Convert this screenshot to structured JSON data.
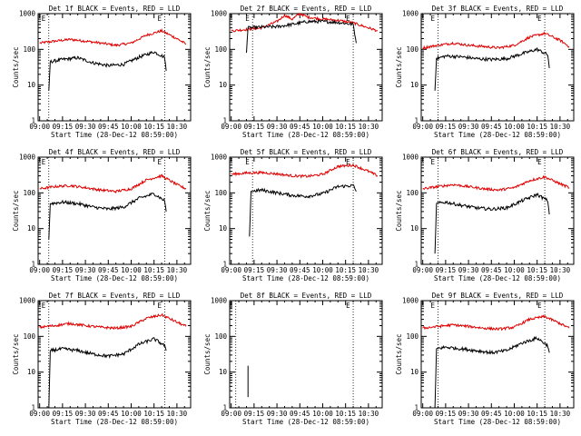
{
  "figure": {
    "colors": {
      "events": "#000000",
      "lld": "#e00000",
      "background": "#ffffff"
    }
  },
  "chart_data": [
    {
      "type": "line",
      "detector": "1f",
      "title": "Det 1f BLACK = Events, RED = LLD",
      "xlabel": "Start Time (28-Dec-12 08:59:00)",
      "ylabel": "Counts/sec",
      "x_ticks": [
        "09:00",
        "09:15",
        "09:30",
        "09:45",
        "10:00",
        "10:15",
        "10:30"
      ],
      "y_ticks": [
        "1",
        "10",
        "100",
        "1000"
      ],
      "ylim": [
        1,
        1000
      ],
      "yscale": "log",
      "markers": [
        {
          "label": "E",
          "time": "09:06"
        },
        {
          "label": "E",
          "time": "10:22"
        }
      ],
      "series": [
        {
          "key": "lld",
          "x": [
            "09:00",
            "09:10",
            "09:20",
            "09:30",
            "09:40",
            "09:50",
            "10:00",
            "10:10",
            "10:20",
            "10:30",
            "10:36"
          ],
          "values": [
            150,
            170,
            190,
            170,
            150,
            130,
            150,
            250,
            330,
            200,
            140
          ]
        },
        {
          "key": "events",
          "x": [
            "09:06",
            "09:07",
            "09:15",
            "09:25",
            "09:35",
            "09:45",
            "09:55",
            "10:05",
            "10:15",
            "10:22",
            "10:23"
          ],
          "values": [
            7,
            45,
            52,
            58,
            42,
            35,
            38,
            60,
            85,
            60,
            25
          ]
        }
      ]
    },
    {
      "type": "line",
      "detector": "2f",
      "title": "Det 2f BLACK = Events, RED = LLD",
      "xlabel": "Start Time (28-Dec-12 08:59:00)",
      "ylabel": "Counts/sec",
      "x_ticks": [
        "09:00",
        "09:15",
        "09:30",
        "09:45",
        "10:00",
        "10:15",
        "10:30"
      ],
      "y_ticks": [
        "1",
        "10",
        "100",
        "1000"
      ],
      "ylim": [
        1,
        1000
      ],
      "yscale": "log",
      "markers": [
        {
          "label": "E",
          "time": "09:14"
        },
        {
          "label": "E",
          "time": "10:20"
        }
      ],
      "series": [
        {
          "key": "lld",
          "x": [
            "09:00",
            "09:10",
            "09:20",
            "09:30",
            "09:35",
            "09:40",
            "09:45",
            "09:50",
            "09:55",
            "10:00",
            "10:10",
            "10:20",
            "10:30",
            "10:36"
          ],
          "values": [
            330,
            360,
            400,
            600,
            900,
            700,
            1000,
            800,
            750,
            700,
            650,
            550,
            400,
            330
          ]
        },
        {
          "key": "events",
          "x": [
            "09:10",
            "09:11",
            "09:20",
            "09:30",
            "09:40",
            "09:50",
            "10:00",
            "10:10",
            "10:20",
            "10:22"
          ],
          "values": [
            80,
            400,
            420,
            430,
            500,
            600,
            600,
            570,
            500,
            150
          ]
        }
      ]
    },
    {
      "type": "line",
      "detector": "3f",
      "title": "Det 3f BLACK = Events, RED = LLD",
      "xlabel": "Start Time (28-Dec-12 08:59:00)",
      "ylabel": "Counts/sec",
      "x_ticks": [
        "09:00",
        "09:15",
        "09:30",
        "09:45",
        "10:00",
        "10:15",
        "10:30"
      ],
      "y_ticks": [
        "1",
        "10",
        "100",
        "1000"
      ],
      "ylim": [
        1,
        1000
      ],
      "yscale": "log",
      "markers": [
        {
          "label": "E",
          "time": "09:10"
        },
        {
          "label": "E",
          "time": "10:20"
        }
      ],
      "series": [
        {
          "key": "lld",
          "x": [
            "09:00",
            "09:10",
            "09:20",
            "09:30",
            "09:40",
            "09:50",
            "10:00",
            "10:10",
            "10:20",
            "10:30",
            "10:36"
          ],
          "values": [
            110,
            130,
            150,
            130,
            120,
            110,
            130,
            220,
            280,
            180,
            120
          ]
        },
        {
          "key": "events",
          "x": [
            "09:08",
            "09:09",
            "09:15",
            "09:25",
            "09:35",
            "09:45",
            "09:55",
            "10:05",
            "10:15",
            "10:22",
            "10:23"
          ],
          "values": [
            7,
            55,
            65,
            62,
            55,
            52,
            55,
            75,
            100,
            70,
            30
          ]
        }
      ]
    },
    {
      "type": "line",
      "detector": "4f",
      "title": "Det 4f BLACK = Events, RED = LLD",
      "xlabel": "Start Time (28-Dec-12 08:59:00)",
      "ylabel": "Counts/sec",
      "x_ticks": [
        "09:00",
        "09:15",
        "09:30",
        "09:45",
        "10:00",
        "10:15",
        "10:30"
      ],
      "y_ticks": [
        "1",
        "10",
        "100",
        "1000"
      ],
      "ylim": [
        1,
        1000
      ],
      "yscale": "log",
      "markers": [
        {
          "label": "E",
          "time": "09:06"
        },
        {
          "label": "E",
          "time": "10:22"
        }
      ],
      "series": [
        {
          "key": "lld",
          "x": [
            "09:00",
            "09:10",
            "09:20",
            "09:30",
            "09:40",
            "09:50",
            "10:00",
            "10:10",
            "10:20",
            "10:30",
            "10:36"
          ],
          "values": [
            130,
            150,
            160,
            140,
            120,
            110,
            130,
            230,
            300,
            170,
            130
          ]
        },
        {
          "key": "events",
          "x": [
            "09:06",
            "09:07",
            "09:15",
            "09:25",
            "09:35",
            "09:45",
            "09:55",
            "10:05",
            "10:15",
            "10:22",
            "10:23"
          ],
          "values": [
            5,
            50,
            55,
            50,
            40,
            35,
            40,
            70,
            95,
            60,
            30
          ]
        }
      ]
    },
    {
      "type": "line",
      "detector": "5f",
      "title": "Det 5f BLACK = Events, RED = LLD",
      "xlabel": "Start Time (28-Dec-12 08:59:00)",
      "ylabel": "Counts/sec",
      "x_ticks": [
        "09:00",
        "09:15",
        "09:30",
        "09:45",
        "10:00",
        "10:15",
        "10:30"
      ],
      "y_ticks": [
        "1",
        "10",
        "100",
        "1000"
      ],
      "ylim": [
        1,
        1000
      ],
      "yscale": "log",
      "markers": [
        {
          "label": "E",
          "time": "09:14"
        },
        {
          "label": "E",
          "time": "10:20"
        }
      ],
      "series": [
        {
          "key": "lld",
          "x": [
            "09:00",
            "09:10",
            "09:20",
            "09:30",
            "09:40",
            "09:50",
            "10:00",
            "10:10",
            "10:20",
            "10:30",
            "10:36"
          ],
          "values": [
            330,
            360,
            370,
            340,
            300,
            290,
            330,
            550,
            600,
            400,
            300
          ]
        },
        {
          "key": "events",
          "x": [
            "09:12",
            "09:13",
            "09:20",
            "09:30",
            "09:40",
            "09:50",
            "10:00",
            "10:10",
            "10:20",
            "10:22"
          ],
          "values": [
            6,
            110,
            120,
            100,
            85,
            80,
            95,
            150,
            160,
            110
          ]
        }
      ]
    },
    {
      "type": "line",
      "detector": "6f",
      "title": "Det 6f BLACK = Events, RED = LLD",
      "xlabel": "Start Time (28-Dec-12 08:59:00)",
      "ylabel": "Counts/sec",
      "x_ticks": [
        "09:00",
        "09:15",
        "09:30",
        "09:45",
        "10:00",
        "10:15",
        "10:30"
      ],
      "y_ticks": [
        "1",
        "10",
        "100",
        "1000"
      ],
      "ylim": [
        1,
        1000
      ],
      "yscale": "log",
      "markers": [
        {
          "label": "E",
          "time": "09:10"
        },
        {
          "label": "E",
          "time": "10:20"
        }
      ],
      "series": [
        {
          "key": "lld",
          "x": [
            "09:00",
            "09:10",
            "09:20",
            "09:30",
            "09:40",
            "09:50",
            "10:00",
            "10:10",
            "10:20",
            "10:30",
            "10:36"
          ],
          "values": [
            130,
            150,
            170,
            150,
            130,
            120,
            140,
            220,
            280,
            180,
            140
          ]
        },
        {
          "key": "events",
          "x": [
            "09:08",
            "09:09",
            "09:15",
            "09:25",
            "09:35",
            "09:45",
            "09:55",
            "10:05",
            "10:15",
            "10:22",
            "10:23"
          ],
          "values": [
            2,
            50,
            55,
            45,
            38,
            35,
            38,
            60,
            90,
            60,
            25
          ]
        }
      ]
    },
    {
      "type": "line",
      "detector": "7f",
      "title": "Det 7f BLACK = Events, RED = LLD",
      "xlabel": "Start Time (28-Dec-12 08:59:00)",
      "ylabel": "Counts/sec",
      "x_ticks": [
        "09:00",
        "09:15",
        "09:30",
        "09:45",
        "10:00",
        "10:15",
        "10:30"
      ],
      "y_ticks": [
        "1",
        "10",
        "100",
        "1000"
      ],
      "ylim": [
        1,
        1000
      ],
      "yscale": "log",
      "markers": [
        {
          "label": "E",
          "time": "09:06"
        },
        {
          "label": "E",
          "time": "10:22"
        }
      ],
      "series": [
        {
          "key": "lld",
          "x": [
            "09:00",
            "09:10",
            "09:20",
            "09:30",
            "09:40",
            "09:50",
            "10:00",
            "10:10",
            "10:20",
            "10:30",
            "10:36"
          ],
          "values": [
            180,
            200,
            230,
            200,
            180,
            170,
            190,
            320,
            400,
            250,
            190
          ]
        },
        {
          "key": "events",
          "x": [
            "09:06",
            "09:07",
            "09:15",
            "09:25",
            "09:35",
            "09:45",
            "09:55",
            "10:05",
            "10:15",
            "10:22",
            "10:23"
          ],
          "values": [
            1,
            40,
            45,
            40,
            32,
            28,
            32,
            60,
            85,
            55,
            40
          ]
        }
      ]
    },
    {
      "type": "line",
      "detector": "8f",
      "title": "Det 8f BLACK = Events, RED = LLD",
      "xlabel": "Start Time (28-Dec-12 08:59:00)",
      "ylabel": "Counts/sec",
      "x_ticks": [
        "09:00",
        "09:15",
        "09:30",
        "09:45",
        "10:00",
        "10:15",
        "10:30"
      ],
      "y_ticks": [
        "1",
        "10",
        "100",
        "1000"
      ],
      "ylim": [
        1,
        1000
      ],
      "yscale": "log",
      "markers": [
        {
          "label": "E",
          "time": "09:03"
        },
        {
          "label": "E",
          "time": "10:20"
        }
      ],
      "series": [
        {
          "key": "events",
          "x": [
            "09:11",
            "09:11"
          ],
          "values": [
            2,
            15
          ]
        }
      ]
    },
    {
      "type": "line",
      "detector": "9f",
      "title": "Det 9f BLACK = Events, RED = LLD",
      "xlabel": "Start Time (28-Dec-12 08:59:00)",
      "ylabel": "Counts/sec",
      "x_ticks": [
        "09:00",
        "09:15",
        "09:30",
        "09:45",
        "10:00",
        "10:15",
        "10:30"
      ],
      "y_ticks": [
        "1",
        "10",
        "100",
        "1000"
      ],
      "ylim": [
        1,
        1000
      ],
      "yscale": "log",
      "markers": [
        {
          "label": "E",
          "time": "09:10"
        },
        {
          "label": "E",
          "time": "10:20"
        }
      ],
      "series": [
        {
          "key": "lld",
          "x": [
            "09:00",
            "09:10",
            "09:20",
            "09:30",
            "09:40",
            "09:50",
            "10:00",
            "10:10",
            "10:20",
            "10:30",
            "10:36"
          ],
          "values": [
            170,
            190,
            210,
            190,
            170,
            160,
            180,
            300,
            360,
            230,
            170
          ]
        },
        {
          "key": "events",
          "x": [
            "09:08",
            "09:09",
            "09:15",
            "09:25",
            "09:35",
            "09:45",
            "09:55",
            "10:05",
            "10:15",
            "10:22",
            "10:23"
          ],
          "values": [
            1,
            45,
            50,
            45,
            40,
            35,
            40,
            65,
            90,
            55,
            35
          ]
        }
      ]
    }
  ]
}
